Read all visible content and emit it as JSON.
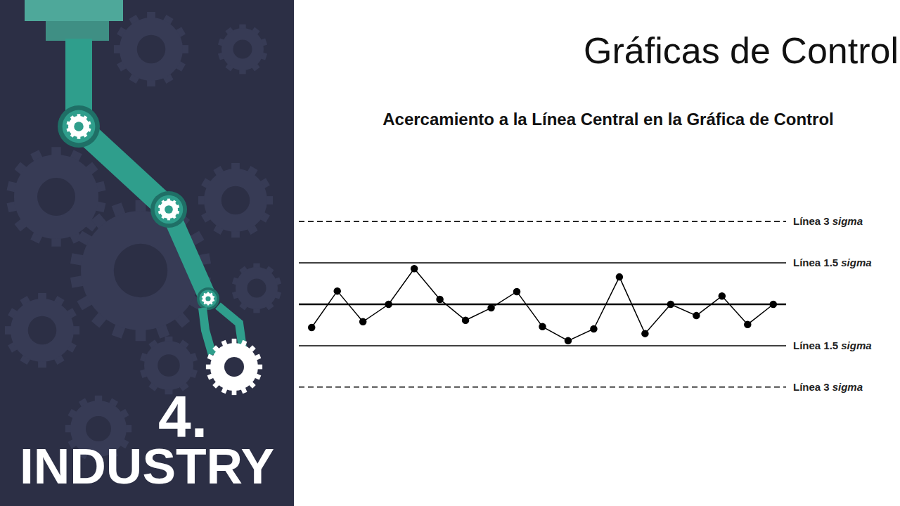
{
  "slide": {
    "title": "Gráficas de Control",
    "panel_number": "4.",
    "panel_label": "INDUSTRY"
  },
  "chart_data": {
    "type": "line",
    "title": "Acercamiento a la Línea Central en la Gráfica de Control",
    "x": [
      1,
      2,
      3,
      4,
      5,
      6,
      7,
      8,
      9,
      10,
      11,
      12,
      13,
      14,
      15,
      16,
      17,
      18,
      19
    ],
    "values": [
      -0.84,
      0.48,
      -0.63,
      0,
      1.29,
      0.18,
      -0.58,
      -0.13,
      0.46,
      -0.81,
      -1.32,
      -0.89,
      0.99,
      -1.06,
      0,
      -0.41,
      0.3,
      -0.73,
      0
    ],
    "color": "#000000",
    "marker": "circle",
    "xlim": [
      0.5,
      19.5
    ],
    "ylim": [
      -4.2,
      4.2
    ],
    "tick_labels": false,
    "limits": [
      {
        "value": 3,
        "label": "Línea 3 sigma",
        "line_style": "dashed"
      },
      {
        "value": 1.5,
        "label": "Línea 1.5 sigma",
        "line_style": "solid"
      },
      {
        "value": 0,
        "line_style": "solid"
      },
      {
        "value": -1.5,
        "label": "Línea 1.5 sigma",
        "line_style": "solid"
      },
      {
        "value": -3,
        "label": "Línea 3 sigma",
        "line_style": "dashed"
      }
    ]
  }
}
